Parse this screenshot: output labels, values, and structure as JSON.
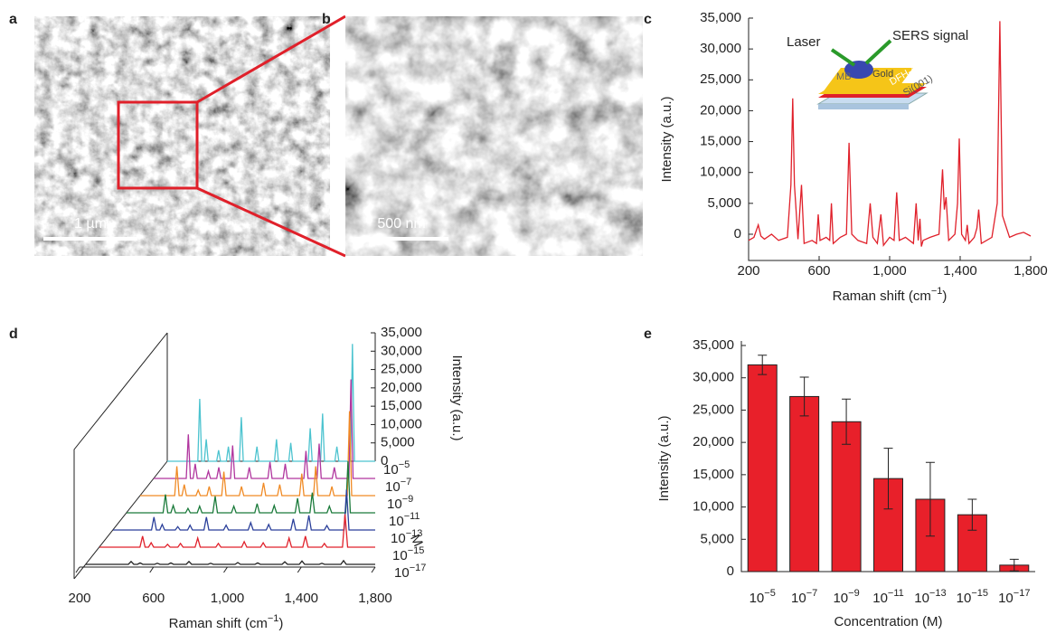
{
  "chart_data": [
    {
      "panel": "a",
      "type": "image",
      "scale_bar": "1 µm"
    },
    {
      "panel": "b",
      "type": "image",
      "scale_bar": "500 nm"
    },
    {
      "panel": "c",
      "type": "line",
      "color": "#e0202a",
      "x_label": "Raman shift (cm−1)",
      "y_label": "Intensity (a.u.)",
      "inset_labels": [
        "Laser",
        "SERS signal",
        "MB",
        "Gold",
        "DFH-4T",
        "Si(001)"
      ],
      "xlim": [
        200,
        1800
      ],
      "xticks": [
        200,
        600,
        {
          "value": 1000,
          "label": "1,000"
        },
        {
          "value": 1400,
          "label": "1,400"
        },
        {
          "value": 1800,
          "label": "1,800"
        }
      ],
      "ylim": [
        -4250,
        35000
      ],
      "yticks": [
        0,
        {
          "value": 5000,
          "label": "5,000"
        },
        {
          "value": 10000,
          "label": "10,000"
        },
        {
          "value": 15000,
          "label": "15,000"
        },
        {
          "value": 20000,
          "label": "20,000"
        },
        {
          "value": 25000,
          "label": "25,000"
        },
        {
          "value": 30000,
          "label": "30,000"
        },
        {
          "value": 35000,
          "label": "35,000"
        }
      ],
      "x": [
        200,
        230,
        255,
        270,
        290,
        330,
        370,
        420,
        440,
        450,
        460,
        480,
        500,
        515,
        560,
        585,
        595,
        605,
        640,
        660,
        670,
        680,
        720,
        755,
        770,
        785,
        820,
        870,
        890,
        905,
        930,
        950,
        965,
        1000,
        1025,
        1040,
        1055,
        1090,
        1135,
        1150,
        1162,
        1172,
        1180,
        1190,
        1230,
        1280,
        1300,
        1310,
        1320,
        1335,
        1370,
        1385,
        1395,
        1408,
        1430,
        1440,
        1450,
        1480,
        1495,
        1505,
        1520,
        1580,
        1610,
        1625,
        1640,
        1680,
        1720,
        1760,
        1800
      ],
      "values": [
        -1000,
        -500,
        1500,
        -300,
        -800,
        0,
        -1000,
        -500,
        8000,
        22000,
        8000,
        -800,
        8000,
        -1500,
        -1000,
        -1500,
        3200,
        -1000,
        -500,
        -1000,
        5000,
        -1500,
        -500,
        0,
        14800,
        0,
        -1000,
        -1500,
        5000,
        -500,
        -1500,
        3200,
        -1800,
        -500,
        -1000,
        6800,
        -1000,
        -500,
        -1500,
        5000,
        -1000,
        2500,
        -2000,
        -1000,
        -500,
        0,
        10500,
        4000,
        6000,
        -1000,
        0,
        5000,
        15500,
        0,
        -1000,
        1500,
        -1500,
        -500,
        1000,
        4000,
        -1500,
        -500,
        5000,
        34500,
        3000,
        -500,
        0,
        300,
        -300
      ]
    },
    {
      "panel": "d",
      "type": "waterfall",
      "x_label": "Raman shift (cm−1)",
      "z_label": "Intensity (a.u.)",
      "depth_label": "M",
      "xlim": [
        200,
        1800
      ],
      "xticks": [
        200,
        600,
        {
          "value": 1000,
          "label": "1,000"
        },
        {
          "value": 1400,
          "label": "1,400"
        },
        {
          "value": 1800,
          "label": "1,800"
        }
      ],
      "zlim": [
        0,
        35000
      ],
      "zticks": [
        0,
        {
          "value": 5000,
          "label": "5,000"
        },
        {
          "value": 10000,
          "label": "10,000"
        },
        {
          "value": 15000,
          "label": "15,000"
        },
        {
          "value": 20000,
          "label": "20,000"
        },
        {
          "value": 25000,
          "label": "25,000"
        },
        {
          "value": 30000,
          "label": "30,000"
        },
        {
          "value": 35000,
          "label": "35,000"
        }
      ],
      "x": [
        200,
        435,
        450,
        465,
        485,
        500,
        515,
        580,
        595,
        610,
        655,
        670,
        685,
        755,
        770,
        785,
        875,
        890,
        905,
        1025,
        1040,
        1055,
        1135,
        1150,
        1165,
        1285,
        1300,
        1315,
        1380,
        1395,
        1410,
        1490,
        1505,
        1520,
        1610,
        1625,
        1640,
        1800
      ],
      "series": [
        {
          "name": "10−5",
          "color": "#4cc3cf",
          "values": [
            0,
            0,
            17000,
            0,
            0,
            6000,
            0,
            0,
            3000,
            0,
            0,
            4000,
            0,
            0,
            12000,
            0,
            0,
            4000,
            0,
            0,
            6000,
            0,
            0,
            5000,
            0,
            0,
            9000,
            0,
            0,
            13000,
            0,
            0,
            4000,
            0,
            0,
            32000,
            0,
            0
          ]
        },
        {
          "name": "10−7",
          "color": "#b0359e",
          "values": [
            0,
            0,
            12000,
            0,
            0,
            4000,
            0,
            0,
            2000,
            0,
            0,
            3000,
            0,
            0,
            9000,
            0,
            0,
            3000,
            0,
            0,
            4500,
            0,
            0,
            4000,
            0,
            0,
            7500,
            0,
            0,
            9500,
            0,
            0,
            3000,
            0,
            0,
            27000,
            0,
            0
          ]
        },
        {
          "name": "10−9",
          "color": "#f08a24",
          "values": [
            0,
            0,
            8000,
            0,
            0,
            3000,
            0,
            0,
            1500,
            0,
            0,
            2500,
            0,
            0,
            6500,
            0,
            0,
            2500,
            0,
            0,
            3500,
            0,
            0,
            3000,
            0,
            0,
            6000,
            0,
            0,
            8000,
            0,
            0,
            2500,
            0,
            0,
            23000,
            0,
            0
          ]
        },
        {
          "name": "10−11",
          "color": "#1a7a3a",
          "values": [
            0,
            0,
            5000,
            0,
            0,
            2000,
            0,
            0,
            1200,
            0,
            0,
            1800,
            0,
            0,
            4500,
            0,
            0,
            1800,
            0,
            0,
            2500,
            0,
            0,
            2000,
            0,
            0,
            4000,
            0,
            0,
            5500,
            0,
            0,
            1800,
            0,
            0,
            14000,
            0,
            0
          ]
        },
        {
          "name": "10−13",
          "color": "#2a3f9a",
          "values": [
            0,
            0,
            3500,
            0,
            0,
            1500,
            0,
            0,
            900,
            0,
            0,
            1300,
            0,
            0,
            3500,
            0,
            0,
            1300,
            0,
            0,
            2000,
            0,
            0,
            1500,
            0,
            0,
            3000,
            0,
            0,
            4000,
            0,
            0,
            1200,
            0,
            0,
            11000,
            0,
            0
          ]
        },
        {
          "name": "10−15",
          "color": "#e0202a",
          "values": [
            0,
            0,
            3000,
            0,
            0,
            1200,
            0,
            0,
            800,
            0,
            0,
            1000,
            0,
            0,
            2500,
            0,
            0,
            1000,
            0,
            0,
            1500,
            0,
            0,
            1200,
            0,
            0,
            2500,
            0,
            0,
            3000,
            0,
            0,
            1000,
            0,
            0,
            9000,
            0,
            0
          ]
        },
        {
          "name": "10−17",
          "color": "#222222",
          "values": [
            0,
            0,
            800,
            0,
            0,
            400,
            0,
            0,
            300,
            0,
            0,
            400,
            0,
            0,
            800,
            0,
            0,
            300,
            0,
            0,
            500,
            0,
            0,
            400,
            0,
            0,
            700,
            0,
            0,
            900,
            0,
            0,
            300,
            0,
            0,
            1000,
            0,
            0
          ]
        }
      ]
    },
    {
      "panel": "e",
      "type": "bar",
      "color": "#e8202a",
      "x_label": "Concentration (M)",
      "y_label": "Intensity (a.u.)",
      "categories": [
        "10−5",
        "10−7",
        "10−9",
        "10−11",
        "10−13",
        "10−15",
        "10−17"
      ],
      "values": [
        32000,
        27100,
        23200,
        14400,
        11200,
        8800,
        1000
      ],
      "errors": [
        1500,
        3000,
        3500,
        4700,
        5700,
        2400,
        900
      ],
      "ylim": [
        0,
        35000
      ],
      "yticks": [
        0,
        {
          "value": 5000,
          "label": "5,000"
        },
        {
          "value": 10000,
          "label": "10,000"
        },
        {
          "value": 15000,
          "label": "15,000"
        },
        {
          "value": 20000,
          "label": "20,000"
        },
        {
          "value": 25000,
          "label": "25,000"
        },
        {
          "value": 30000,
          "label": "30,000"
        },
        {
          "value": 35000,
          "label": "35,000"
        }
      ]
    }
  ]
}
